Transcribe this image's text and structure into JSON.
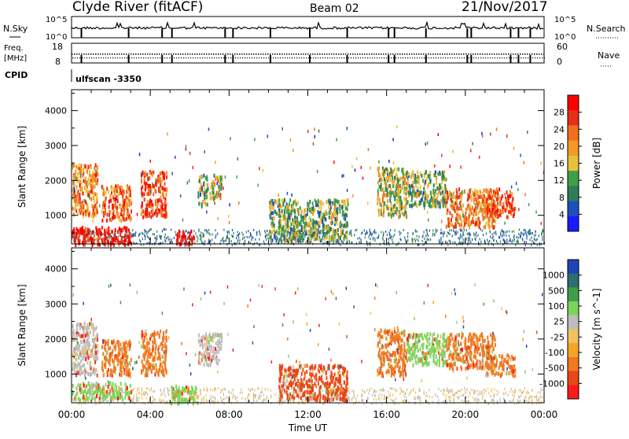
{
  "header": {
    "station": "Clyde River (fitACF)",
    "beam": "Beam 02",
    "date": "21/Nov/2017"
  },
  "top_panels": {
    "nsky_label": "N.Sky",
    "nsky_ticks": [
      "10^5",
      "10^0"
    ],
    "nsearch_label": "N.Search",
    "nsearch_ticks": [
      "10^5",
      "10^0"
    ],
    "freq_label": "Freq.",
    "freq_unit": "[MHz]",
    "freq_ticks": [
      "18",
      "8"
    ],
    "nave_label": "Nave",
    "nave_ticks": [
      "60",
      "0"
    ],
    "cpid_label": "CPID",
    "cpid_value": "ulfscan -3350"
  },
  "colors": {
    "power_scale": [
      "#1a1aff",
      "#1f4fbf",
      "#2e7d55",
      "#3fa04a",
      "#e6c23a",
      "#f39a26",
      "#f07020",
      "#e63019",
      "#ff0000"
    ],
    "velocity_scale": [
      "#ff1a1a",
      "#e84818",
      "#f07a1e",
      "#f5a524",
      "#f2c35e",
      "#bdbdbd",
      "#7dd45a",
      "#3f9e4c",
      "#2e6e6e",
      "#1f45b5"
    ]
  },
  "chart_data": [
    {
      "type": "heatmap",
      "name_id": "power",
      "ylabel": "Slant Range [km]",
      "x_range_hours": [
        0,
        24
      ],
      "ylim": [
        180,
        4600
      ],
      "yticks": [
        "1000",
        "2000",
        "3000",
        "4000"
      ],
      "xticks": [
        "00:00",
        "04:00",
        "08:00",
        "12:00",
        "16:00",
        "20:00",
        "00:00"
      ],
      "colorbar": {
        "label": "Power [dB]",
        "ticks": [
          "4",
          "8",
          "12",
          "16",
          "20",
          "24",
          "28"
        ],
        "range": [
          0,
          30
        ]
      },
      "regions": [
        {
          "t": [
            0.0,
            1.3
          ],
          "r": [
            1000,
            2500
          ],
          "level": 20
        },
        {
          "t": [
            0.0,
            3.0
          ],
          "r": [
            200,
            700
          ],
          "level": 28
        },
        {
          "t": [
            1.5,
            3.0
          ],
          "r": [
            900,
            1900
          ],
          "level": 22
        },
        {
          "t": [
            3.5,
            4.8
          ],
          "r": [
            1000,
            2300
          ],
          "level": 24
        },
        {
          "t": [
            5.3,
            6.2
          ],
          "r": [
            200,
            600
          ],
          "level": 28
        },
        {
          "t": [
            6.4,
            6.9
          ],
          "r": [
            1300,
            2200
          ],
          "level": 12
        },
        {
          "t": [
            7.0,
            7.6
          ],
          "r": [
            1500,
            2200
          ],
          "level": 14
        },
        {
          "t": [
            10.0,
            14.0
          ],
          "r": [
            300,
            1500
          ],
          "level": 12
        },
        {
          "t": [
            15.5,
            17.0
          ],
          "r": [
            1000,
            2400
          ],
          "level": 14
        },
        {
          "t": [
            17.0,
            19.0
          ],
          "r": [
            1300,
            2300
          ],
          "level": 12
        },
        {
          "t": [
            19.0,
            21.5
          ],
          "r": [
            700,
            1800
          ],
          "level": 20
        },
        {
          "t": [
            21.0,
            22.5
          ],
          "r": [
            1000,
            1800
          ],
          "level": 24
        }
      ]
    },
    {
      "type": "heatmap",
      "name_id": "velocity",
      "ylabel": "Slant Range [km]",
      "x_range_hours": [
        0,
        24
      ],
      "ylim": [
        180,
        4600
      ],
      "yticks": [
        "1000",
        "2000",
        "3000",
        "4000"
      ],
      "xticks": [
        "00:00",
        "04:00",
        "08:00",
        "12:00",
        "16:00",
        "20:00",
        "00:00"
      ],
      "xlabel": "Time UT",
      "colorbar": {
        "label": "Velocity [m s^-1]",
        "ticks": [
          "1000",
          "500",
          "100",
          "25",
          "-25",
          "-100",
          "-500",
          "-1000"
        ],
        "range": [
          -1000,
          1000
        ]
      },
      "regions": [
        {
          "t": [
            0.0,
            1.3
          ],
          "r": [
            1000,
            2500
          ],
          "level": 100
        },
        {
          "t": [
            0.0,
            3.0
          ],
          "r": [
            300,
            800
          ],
          "level": 500
        },
        {
          "t": [
            1.5,
            3.0
          ],
          "r": [
            1000,
            2000
          ],
          "level": -100
        },
        {
          "t": [
            3.5,
            4.8
          ],
          "r": [
            1000,
            2300
          ],
          "level": -100
        },
        {
          "t": [
            5.0,
            6.4
          ],
          "r": [
            200,
            700
          ],
          "level": 500
        },
        {
          "t": [
            6.4,
            7.6
          ],
          "r": [
            1300,
            2200
          ],
          "level": 100
        },
        {
          "t": [
            10.5,
            14.0
          ],
          "r": [
            300,
            1300
          ],
          "level": -500
        },
        {
          "t": [
            15.5,
            17.0
          ],
          "r": [
            1000,
            2300
          ],
          "level": -100
        },
        {
          "t": [
            17.0,
            19.0
          ],
          "r": [
            1300,
            2200
          ],
          "level": 500
        },
        {
          "t": [
            19.0,
            21.5
          ],
          "r": [
            1200,
            2200
          ],
          "level": -100
        },
        {
          "t": [
            21.0,
            22.5
          ],
          "r": [
            1000,
            1600
          ],
          "level": -100
        }
      ]
    }
  ]
}
